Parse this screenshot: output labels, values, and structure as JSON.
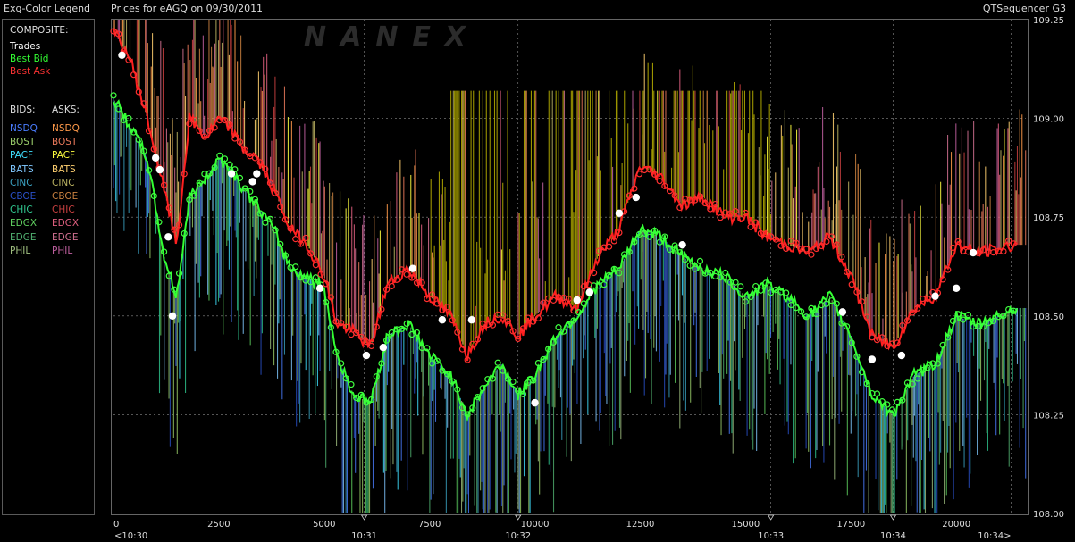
{
  "header": {
    "legend_title": "Exg-Color Legend",
    "chart_title": "Prices for  eAGQ  on  09/30/2011",
    "app_name": "QTSequencer G3"
  },
  "legend": {
    "composite_label": "COMPOSITE:",
    "composite": [
      {
        "label": "Trades",
        "color": "#ffffff"
      },
      {
        "label": "Best Bid",
        "color": "#33ff33"
      },
      {
        "label": "Best Ask",
        "color": "#ff3333"
      }
    ],
    "bids_label": "BIDS:",
    "asks_label": "ASKS:",
    "exchanges": [
      {
        "bid": "NSDQ",
        "ask": "NSDQ",
        "bid_color": "#4a7dff",
        "ask_color": "#ff9a4a"
      },
      {
        "bid": "BOST",
        "ask": "BOST",
        "bid_color": "#9acd6a",
        "ask_color": "#e8785a"
      },
      {
        "bid": "PACF",
        "ask": "PACF",
        "bid_color": "#40e0ff",
        "ask_color": "#ffff40"
      },
      {
        "bid": "BATS",
        "ask": "BATS",
        "bid_color": "#80c8ff",
        "ask_color": "#ffd070"
      },
      {
        "bid": "CINC",
        "ask": "CINC",
        "bid_color": "#3aa0c0",
        "ask_color": "#b8b060"
      },
      {
        "bid": "CBOE",
        "ask": "CBOE",
        "bid_color": "#2a50c8",
        "ask_color": "#c88040"
      },
      {
        "bid": "CHIC",
        "ask": "CHIC",
        "bid_color": "#30c890",
        "ask_color": "#c84040"
      },
      {
        "bid": "EDGX",
        "ask": "EDGX",
        "bid_color": "#60d060",
        "ask_color": "#e06080"
      },
      {
        "bid": "EDGE",
        "ask": "EDGE",
        "bid_color": "#50b070",
        "ask_color": "#d07090"
      },
      {
        "bid": "PHIL",
        "ask": "PHIL",
        "bid_color": "#a0c080",
        "ask_color": "#c060a0"
      }
    ]
  },
  "watermark": "NANEX",
  "chart_data": {
    "type": "line",
    "x_ticks": [
      "0",
      "2500",
      "5000",
      "7500",
      "10000",
      "12500",
      "15000",
      "17500",
      "20000"
    ],
    "x_tick_values": [
      0,
      2500,
      5000,
      7500,
      10000,
      12500,
      15000,
      17500,
      20000
    ],
    "time_labels": [
      "<10:30",
      "10:31",
      "10:32",
      "10:33",
      "10:34",
      "10:34>"
    ],
    "time_label_x": [
      0,
      5950,
      9600,
      15600,
      18500,
      21300
    ],
    "y_ticks": [
      "108.00",
      "108.25",
      "108.50",
      "108.75",
      "109.00",
      "109.25"
    ],
    "y_tick_values": [
      108.0,
      108.25,
      108.5,
      108.75,
      109.0,
      109.25
    ],
    "xlim": [
      0,
      21650
    ],
    "ylim": [
      108.0,
      109.25
    ],
    "grid": true,
    "series": [
      {
        "name": "Best Ask",
        "color": "#ff2020",
        "x": [
          0,
          400,
          800,
          1200,
          1500,
          1800,
          2200,
          2500,
          2800,
          3100,
          3400,
          3800,
          4200,
          4600,
          5000,
          5300,
          5700,
          6100,
          6500,
          7000,
          7500,
          8000,
          8400,
          8800,
          9200,
          9600,
          10000,
          10500,
          11000,
          11500,
          12000,
          12500,
          13000,
          13500,
          14000,
          14500,
          15000,
          15500,
          16000,
          16500,
          17000,
          17500,
          18000,
          18500,
          19000,
          19500,
          20000,
          20500,
          21000,
          21400
        ],
        "values": [
          109.22,
          109.15,
          109.0,
          108.82,
          108.68,
          109.0,
          108.95,
          109.0,
          108.97,
          108.92,
          108.9,
          108.82,
          108.72,
          108.68,
          108.6,
          108.48,
          108.46,
          108.42,
          108.58,
          108.62,
          108.55,
          108.5,
          108.4,
          108.48,
          108.5,
          108.45,
          108.5,
          108.55,
          108.52,
          108.65,
          108.72,
          108.88,
          108.85,
          108.78,
          108.8,
          108.75,
          108.75,
          108.7,
          108.68,
          108.66,
          108.7,
          108.6,
          108.45,
          108.42,
          108.52,
          108.55,
          108.68,
          108.66,
          108.67,
          108.68
        ]
      },
      {
        "name": "Best Bid",
        "color": "#33ff33",
        "x": [
          0,
          400,
          800,
          1200,
          1500,
          1800,
          2200,
          2500,
          2800,
          3100,
          3400,
          3800,
          4200,
          4600,
          5000,
          5300,
          5700,
          6100,
          6500,
          7000,
          7500,
          8000,
          8400,
          8800,
          9200,
          9600,
          10000,
          10500,
          11000,
          11500,
          12000,
          12500,
          13000,
          13500,
          14000,
          14500,
          15000,
          15500,
          16000,
          16500,
          17000,
          17500,
          18000,
          18500,
          19000,
          19500,
          20000,
          20500,
          21000,
          21400
        ],
        "values": [
          109.05,
          108.98,
          108.9,
          108.65,
          108.55,
          108.8,
          108.85,
          108.9,
          108.87,
          108.82,
          108.78,
          108.72,
          108.62,
          108.6,
          108.57,
          108.4,
          108.3,
          108.28,
          108.45,
          108.48,
          108.4,
          108.35,
          108.25,
          108.32,
          108.38,
          108.3,
          108.35,
          108.45,
          108.5,
          108.58,
          108.62,
          108.72,
          108.7,
          108.65,
          108.62,
          108.6,
          108.55,
          108.58,
          108.55,
          108.5,
          108.55,
          108.45,
          108.3,
          108.25,
          108.35,
          108.38,
          108.5,
          108.48,
          108.5,
          108.52
        ]
      },
      {
        "name": "Trades",
        "color": "#ffffff",
        "x": [
          200,
          1000,
          1100,
          1300,
          1400,
          2800,
          3300,
          3400,
          4900,
          6000,
          6400,
          7100,
          7800,
          8500,
          10000,
          11000,
          11300,
          12000,
          12400,
          13500,
          17300,
          18000,
          18700,
          19500,
          20000,
          20400
        ],
        "values": [
          109.16,
          108.9,
          108.87,
          108.7,
          108.5,
          108.86,
          108.84,
          108.86,
          108.57,
          108.4,
          108.42,
          108.62,
          108.49,
          108.49,
          108.28,
          108.54,
          108.56,
          108.76,
          108.8,
          108.68,
          108.51,
          108.39,
          108.4,
          108.55,
          108.57,
          108.66
        ]
      }
    ]
  }
}
